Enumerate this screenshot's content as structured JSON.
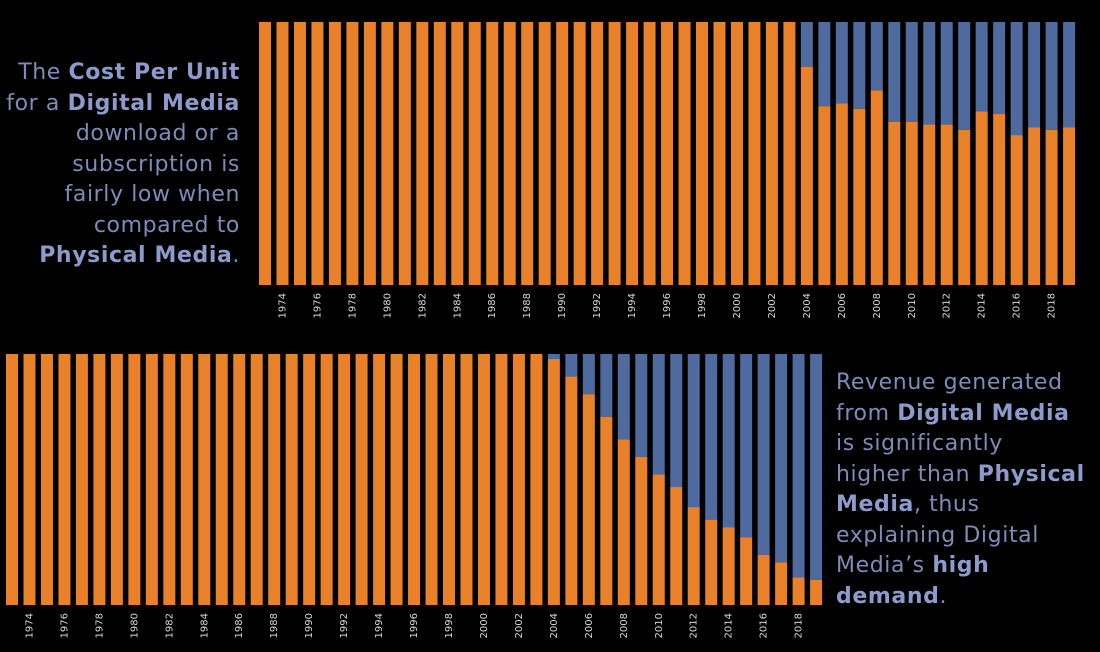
{
  "colors": {
    "physical": "#E8812A",
    "digital": "#4E6A9E",
    "background": "#000000",
    "caption": "#7d8cb8"
  },
  "captions": {
    "top": [
      {
        "text": "The ",
        "bold": false
      },
      {
        "text": "Cost Per Unit",
        "bold": true
      },
      {
        "br": true
      },
      {
        "text": "for a ",
        "bold": false
      },
      {
        "text": "Digital Media",
        "bold": true
      },
      {
        "br": true
      },
      {
        "text": "download or a",
        "bold": false
      },
      {
        "br": true
      },
      {
        "text": "subscription is",
        "bold": false
      },
      {
        "br": true
      },
      {
        "text": "fairly low when",
        "bold": false
      },
      {
        "br": true
      },
      {
        "text": "compared to",
        "bold": false
      },
      {
        "br": true
      },
      {
        "text": "Physical Media",
        "bold": true
      },
      {
        "text": ".",
        "bold": false
      }
    ],
    "bottom": [
      {
        "text": "Revenue generated",
        "bold": false
      },
      {
        "br": true
      },
      {
        "text": "from ",
        "bold": false
      },
      {
        "text": "Digital Media",
        "bold": true
      },
      {
        "br": true
      },
      {
        "text": "is significantly",
        "bold": false
      },
      {
        "br": true
      },
      {
        "text": "higher than ",
        "bold": false
      },
      {
        "text": "Physical",
        "bold": true
      },
      {
        "br": true
      },
      {
        "text": "Media",
        "bold": true
      },
      {
        "text": ", thus",
        "bold": false
      },
      {
        "br": true
      },
      {
        "text": "explaining Digital",
        "bold": false
      },
      {
        "br": true
      },
      {
        "text": "Media’s ",
        "bold": false
      },
      {
        "text": "high",
        "bold": true
      },
      {
        "br": true
      },
      {
        "text": "demand",
        "bold": true
      },
      {
        "text": ".",
        "bold": false
      }
    ]
  },
  "chart_data": [
    {
      "type": "bar",
      "stacked": true,
      "normalized": true,
      "categories": [
        1973,
        1974,
        1975,
        1976,
        1977,
        1978,
        1979,
        1980,
        1981,
        1982,
        1983,
        1984,
        1985,
        1986,
        1987,
        1988,
        1989,
        1990,
        1991,
        1992,
        1993,
        1994,
        1995,
        1996,
        1997,
        1998,
        1999,
        2000,
        2001,
        2002,
        2003,
        2004,
        2005,
        2006,
        2007,
        2008,
        2009,
        2010,
        2011,
        2012,
        2013,
        2014,
        2015,
        2016,
        2017,
        2018,
        2019
      ],
      "tick_labels": [
        "1974",
        "1976",
        "1978",
        "1980",
        "1982",
        "1984",
        "1986",
        "1988",
        "1990",
        "1992",
        "1994",
        "1996",
        "1998",
        "2000",
        "2002",
        "2004",
        "2006",
        "2008",
        "2010",
        "2012",
        "2014",
        "2016",
        "2018"
      ],
      "series": [
        {
          "color": "#E8812A",
          "values": [
            1,
            1,
            1,
            1,
            1,
            1,
            1,
            1,
            1,
            1,
            1,
            1,
            1,
            1,
            1,
            1,
            1,
            1,
            1,
            1,
            1,
            1,
            1,
            1,
            1,
            1,
            1,
            1,
            1,
            1,
            1,
            0.83,
            0.68,
            0.69,
            0.67,
            0.74,
            0.62,
            0.62,
            0.61,
            0.61,
            0.59,
            0.66,
            0.65,
            0.57,
            0.6,
            0.59,
            0.6
          ]
        },
        {
          "color": "#4E6A9E",
          "values": [
            0,
            0,
            0,
            0,
            0,
            0,
            0,
            0,
            0,
            0,
            0,
            0,
            0,
            0,
            0,
            0,
            0,
            0,
            0,
            0,
            0,
            0,
            0,
            0,
            0,
            0,
            0,
            0,
            0,
            0,
            0,
            0.17,
            0.32,
            0.31,
            0.33,
            0.26,
            0.38,
            0.38,
            0.39,
            0.39,
            0.41,
            0.34,
            0.35,
            0.43,
            0.4,
            0.41,
            0.4
          ]
        }
      ],
      "ylim": [
        0,
        1
      ]
    },
    {
      "type": "bar",
      "stacked": true,
      "normalized": true,
      "categories": [
        1973,
        1974,
        1975,
        1976,
        1977,
        1978,
        1979,
        1980,
        1981,
        1982,
        1983,
        1984,
        1985,
        1986,
        1987,
        1988,
        1989,
        1990,
        1991,
        1992,
        1993,
        1994,
        1995,
        1996,
        1997,
        1998,
        1999,
        2000,
        2001,
        2002,
        2003,
        2004,
        2005,
        2006,
        2007,
        2008,
        2009,
        2010,
        2011,
        2012,
        2013,
        2014,
        2015,
        2016,
        2017,
        2018,
        2019
      ],
      "tick_labels": [
        "1974",
        "1976",
        "1978",
        "1980",
        "1982",
        "1984",
        "1986",
        "1988",
        "1990",
        "1992",
        "1994",
        "1996",
        "1998",
        "2000",
        "2002",
        "2004",
        "2006",
        "2008",
        "2010",
        "2012",
        "2014",
        "2016",
        "2018"
      ],
      "series": [
        {
          "color": "#E8812A",
          "values": [
            1,
            1,
            1,
            1,
            1,
            1,
            1,
            1,
            1,
            1,
            1,
            1,
            1,
            1,
            1,
            1,
            1,
            1,
            1,
            1,
            1,
            1,
            1,
            1,
            1,
            1,
            1,
            1,
            1,
            1,
            1,
            0.98,
            0.91,
            0.84,
            0.75,
            0.66,
            0.59,
            0.52,
            0.47,
            0.39,
            0.34,
            0.31,
            0.27,
            0.2,
            0.17,
            0.11,
            0.1
          ]
        },
        {
          "color": "#4E6A9E",
          "values": [
            0,
            0,
            0,
            0,
            0,
            0,
            0,
            0,
            0,
            0,
            0,
            0,
            0,
            0,
            0,
            0,
            0,
            0,
            0,
            0,
            0,
            0,
            0,
            0,
            0,
            0,
            0,
            0,
            0,
            0,
            0,
            0.02,
            0.09,
            0.16,
            0.25,
            0.34,
            0.41,
            0.48,
            0.53,
            0.61,
            0.66,
            0.69,
            0.73,
            0.8,
            0.83,
            0.89,
            0.9
          ]
        }
      ],
      "ylim": [
        0,
        1
      ]
    }
  ]
}
